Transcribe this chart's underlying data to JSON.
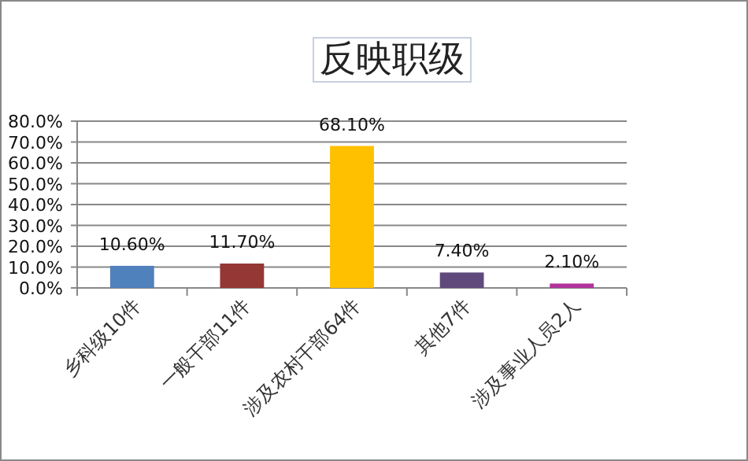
{
  "chart_data": {
    "type": "bar",
    "title": "反映职级",
    "categories": [
      "乡科级10件",
      "一般干部11件",
      "涉及农村干部64件",
      "其他7件",
      "涉及事业人员2人"
    ],
    "values": [
      10.6,
      11.7,
      68.1,
      7.4,
      2.1
    ],
    "colors": [
      "#4f81bd",
      "#953735",
      "#ffc000",
      "#604a7b",
      "#b0349c"
    ],
    "value_labels": [
      "10.60%",
      "11.70%",
      "68.10%",
      "7.40%",
      "2.10%"
    ],
    "ylim": [
      0,
      80
    ],
    "yticks": [
      {
        "value": 0,
        "label": "0.0%"
      },
      {
        "value": 10,
        "label": "10.0%"
      },
      {
        "value": 20,
        "label": "20.0%"
      },
      {
        "value": 30,
        "label": "30.0%"
      },
      {
        "value": 40,
        "label": "40.0%"
      },
      {
        "value": 50,
        "label": "50.0%"
      },
      {
        "value": 60,
        "label": "60.0%"
      },
      {
        "value": 70,
        "label": "70.0%"
      },
      {
        "value": 80,
        "label": "80.0%"
      }
    ],
    "grid": "y",
    "legend": false
  }
}
